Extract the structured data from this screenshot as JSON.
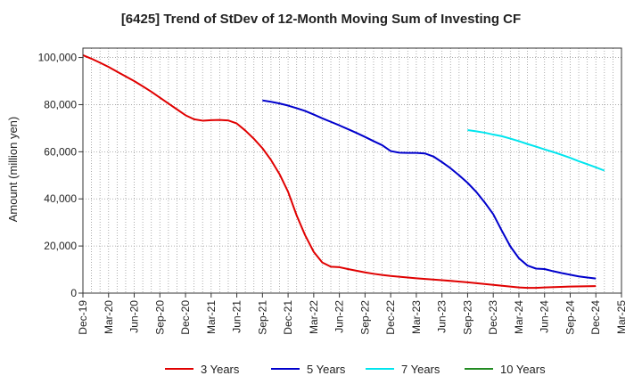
{
  "chart_data": {
    "type": "line",
    "title": "[6425]  Trend of StDev of 12-Month Moving Sum of Investing CF",
    "xlabel": "",
    "ylabel": "Amount (million yen)",
    "ylim": [
      0,
      104000
    ],
    "yticks": [
      0,
      20000,
      40000,
      60000,
      80000,
      100000
    ],
    "ytick_labels": [
      "0",
      "20,000",
      "40,000",
      "60,000",
      "80,000",
      "100,000"
    ],
    "x_axis": {
      "start": "2019-12",
      "end": "2025-03",
      "tick_labels": [
        "Dec-19",
        "Mar-20",
        "Jun-20",
        "Sep-20",
        "Dec-20",
        "Mar-21",
        "Jun-21",
        "Sep-21",
        "Dec-21",
        "Mar-22",
        "Jun-22",
        "Sep-22",
        "Dec-22",
        "Mar-23",
        "Jun-23",
        "Sep-23",
        "Dec-23",
        "Mar-24",
        "Jun-24",
        "Sep-24",
        "Dec-24",
        "Mar-25"
      ]
    },
    "grid": true,
    "legend_position": "bottom",
    "series": [
      {
        "name": "3 Years",
        "color": "#e00000",
        "points": [
          [
            "2019-12",
            101000
          ],
          [
            "2020-01",
            99500
          ],
          [
            "2020-02",
            97800
          ],
          [
            "2020-03",
            96000
          ],
          [
            "2020-04",
            94000
          ],
          [
            "2020-05",
            92000
          ],
          [
            "2020-06",
            90000
          ],
          [
            "2020-07",
            87800
          ],
          [
            "2020-08",
            85500
          ],
          [
            "2020-09",
            83000
          ],
          [
            "2020-10",
            80500
          ],
          [
            "2020-11",
            78000
          ],
          [
            "2020-12",
            75500
          ],
          [
            "2021-01",
            73800
          ],
          [
            "2021-02",
            73200
          ],
          [
            "2021-03",
            73400
          ],
          [
            "2021-04",
            73500
          ],
          [
            "2021-05",
            73300
          ],
          [
            "2021-06",
            72000
          ],
          [
            "2021-07",
            69000
          ],
          [
            "2021-08",
            65500
          ],
          [
            "2021-09",
            61500
          ],
          [
            "2021-10",
            56500
          ],
          [
            "2021-11",
            50500
          ],
          [
            "2021-12",
            43000
          ],
          [
            "2022-01",
            33000
          ],
          [
            "2022-02",
            24500
          ],
          [
            "2022-03",
            17500
          ],
          [
            "2022-04",
            13000
          ],
          [
            "2022-05",
            11200
          ],
          [
            "2022-06",
            11000
          ],
          [
            "2022-07",
            10200
          ],
          [
            "2022-08",
            9500
          ],
          [
            "2022-09",
            8800
          ],
          [
            "2022-10",
            8200
          ],
          [
            "2022-11",
            7700
          ],
          [
            "2022-12",
            7300
          ],
          [
            "2023-03",
            6300
          ],
          [
            "2023-06",
            5500
          ],
          [
            "2023-09",
            4600
          ],
          [
            "2023-12",
            3500
          ],
          [
            "2024-03",
            2400
          ],
          [
            "2024-04",
            2200
          ],
          [
            "2024-05",
            2200
          ],
          [
            "2024-06",
            2400
          ],
          [
            "2024-09",
            2800
          ],
          [
            "2024-12",
            3000
          ]
        ]
      },
      {
        "name": "5 Years",
        "color": "#0000cc",
        "points": [
          [
            "2021-09",
            81800
          ],
          [
            "2021-10",
            81200
          ],
          [
            "2021-11",
            80500
          ],
          [
            "2021-12",
            79600
          ],
          [
            "2022-01",
            78500
          ],
          [
            "2022-02",
            77300
          ],
          [
            "2022-03",
            75800
          ],
          [
            "2022-04",
            74200
          ],
          [
            "2022-05",
            72700
          ],
          [
            "2022-06",
            71200
          ],
          [
            "2022-07",
            69600
          ],
          [
            "2022-08",
            68000
          ],
          [
            "2022-09",
            66300
          ],
          [
            "2022-10",
            64500
          ],
          [
            "2022-11",
            62800
          ],
          [
            "2022-12",
            60300
          ],
          [
            "2023-01",
            59600
          ],
          [
            "2023-02",
            59500
          ],
          [
            "2023-03",
            59500
          ],
          [
            "2023-04",
            59300
          ],
          [
            "2023-05",
            58000
          ],
          [
            "2023-06",
            55600
          ],
          [
            "2023-07",
            53000
          ],
          [
            "2023-08",
            50000
          ],
          [
            "2023-09",
            46800
          ],
          [
            "2023-10",
            43000
          ],
          [
            "2023-11",
            38500
          ],
          [
            "2023-12",
            33500
          ],
          [
            "2024-01",
            26500
          ],
          [
            "2024-02",
            19800
          ],
          [
            "2024-03",
            14800
          ],
          [
            "2024-04",
            11700
          ],
          [
            "2024-05",
            10400
          ],
          [
            "2024-06",
            10200
          ],
          [
            "2024-07",
            9300
          ],
          [
            "2024-08",
            8500
          ],
          [
            "2024-09",
            7800
          ],
          [
            "2024-10",
            7100
          ],
          [
            "2024-11",
            6600
          ],
          [
            "2024-12",
            6200
          ]
        ]
      },
      {
        "name": "7 Years",
        "color": "#00e5ee",
        "points": [
          [
            "2023-09",
            69200
          ],
          [
            "2023-10",
            68700
          ],
          [
            "2023-11",
            68100
          ],
          [
            "2023-12",
            67300
          ],
          [
            "2024-01",
            66600
          ],
          [
            "2024-02",
            65600
          ],
          [
            "2024-03",
            64500
          ],
          [
            "2024-04",
            63300
          ],
          [
            "2024-05",
            62200
          ],
          [
            "2024-06",
            61000
          ],
          [
            "2024-07",
            59900
          ],
          [
            "2024-08",
            58700
          ],
          [
            "2024-09",
            57400
          ],
          [
            "2024-10",
            56000
          ],
          [
            "2024-11",
            54700
          ],
          [
            "2024-12",
            53400
          ],
          [
            "2025-01",
            52000
          ]
        ]
      },
      {
        "name": "10 Years",
        "color": "#228B22",
        "points": []
      }
    ]
  }
}
